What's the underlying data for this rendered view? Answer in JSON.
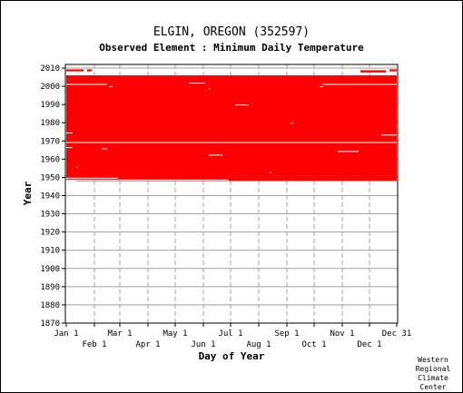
{
  "chart_data": {
    "type": "heatmap",
    "title": "ELGIN, OREGON   (352597)",
    "subtitle": "Observed Element : Minimum Daily Temperature",
    "xlabel": "Day of Year",
    "ylabel": "Year",
    "ylim": [
      1870,
      2012
    ],
    "yticks": [
      2010,
      2000,
      1990,
      1980,
      1970,
      1960,
      1950,
      1940,
      1930,
      1920,
      1910,
      1900,
      1890,
      1880,
      1870
    ],
    "xlim": [
      1,
      365
    ],
    "xticks_top": [
      {
        "label": "Jan 1",
        "day": 1
      },
      {
        "label": "Mar 1",
        "day": 60
      },
      {
        "label": "May 1",
        "day": 121
      },
      {
        "label": "Jul 1",
        "day": 182
      },
      {
        "label": "Sep 1",
        "day": 244
      },
      {
        "label": "Nov 1",
        "day": 305
      },
      {
        "label": "Dec 31",
        "day": 365
      }
    ],
    "xticks_bottom": [
      {
        "label": "Feb 1",
        "day": 32
      },
      {
        "label": "Apr 1",
        "day": 91
      },
      {
        "label": "Jun 1",
        "day": 152
      },
      {
        "label": "Aug 1",
        "day": 213
      },
      {
        "label": "Oct 1",
        "day": 274
      },
      {
        "label": "Dec 1",
        "day": 335
      }
    ],
    "grid": true,
    "data_color": "#ff0000",
    "coverage": [
      {
        "year_start": 2008.2,
        "year_end": 2009.3,
        "day_start": 1,
        "day_end": 20
      },
      {
        "year_start": 2008.2,
        "year_end": 2009.3,
        "day_start": 24,
        "day_end": 29
      },
      {
        "year_start": 2007.6,
        "year_end": 2008.8,
        "day_start": 325,
        "day_end": 353
      },
      {
        "year_start": 2008.2,
        "year_end": 2009.3,
        "day_start": 357,
        "day_end": 365
      },
      {
        "year_start": 1948,
        "year_end": 2006,
        "day_start": 1,
        "day_end": 365
      }
    ],
    "missing": [
      {
        "year_start": 2000.8,
        "year_end": 2001.3,
        "day_start": 1,
        "day_end": 46
      },
      {
        "year_start": 2000.8,
        "year_end": 2001.3,
        "day_start": 283,
        "day_end": 365
      },
      {
        "year_start": 1999.5,
        "year_end": 2000.0,
        "day_start": 48,
        "day_end": 52
      },
      {
        "year_start": 1999.5,
        "year_end": 2000.0,
        "day_start": 280,
        "day_end": 284
      },
      {
        "year_start": 2001.5,
        "year_end": 2002.0,
        "day_start": 136,
        "day_end": 154
      },
      {
        "year_start": 1998.5,
        "year_end": 1999.0,
        "day_start": 158,
        "day_end": 160
      },
      {
        "year_start": 1989.5,
        "year_end": 1990.0,
        "day_start": 187,
        "day_end": 202
      },
      {
        "year_start": 1979.5,
        "year_end": 1980.0,
        "day_start": 248,
        "day_end": 251
      },
      {
        "year_start": 1974.2,
        "year_end": 1974.6,
        "day_start": 1,
        "day_end": 8
      },
      {
        "year_start": 1973.0,
        "year_end": 1973.5,
        "day_start": 348,
        "day_end": 365
      },
      {
        "year_start": 1968.9,
        "year_end": 1969.4,
        "day_start": 1,
        "day_end": 365
      },
      {
        "year_start": 1966.2,
        "year_end": 1966.6,
        "day_start": 1,
        "day_end": 8
      },
      {
        "year_start": 1965.8,
        "year_end": 1966.0,
        "day_start": 40,
        "day_end": 46
      },
      {
        "year_start": 1962.0,
        "year_end": 1962.5,
        "day_start": 158,
        "day_end": 173
      },
      {
        "year_start": 1964.0,
        "year_end": 1964.5,
        "day_start": 300,
        "day_end": 323
      },
      {
        "year_start": 1955.5,
        "year_end": 1956.0,
        "day_start": 12,
        "day_end": 14
      },
      {
        "year_start": 1952.5,
        "year_end": 1953.0,
        "day_start": 225,
        "day_end": 227
      },
      {
        "year_start": 1949.3,
        "year_end": 1949.8,
        "day_start": 1,
        "day_end": 58
      },
      {
        "year_start": 1948.4,
        "year_end": 1948.8,
        "day_start": 1,
        "day_end": 180
      },
      {
        "year_start": 1947.8,
        "year_end": 1948.2,
        "day_start": 1,
        "day_end": 12
      }
    ]
  },
  "credit": {
    "line1": "Western",
    "line2": "Regional",
    "line3": "Climate",
    "line4": "Center"
  }
}
